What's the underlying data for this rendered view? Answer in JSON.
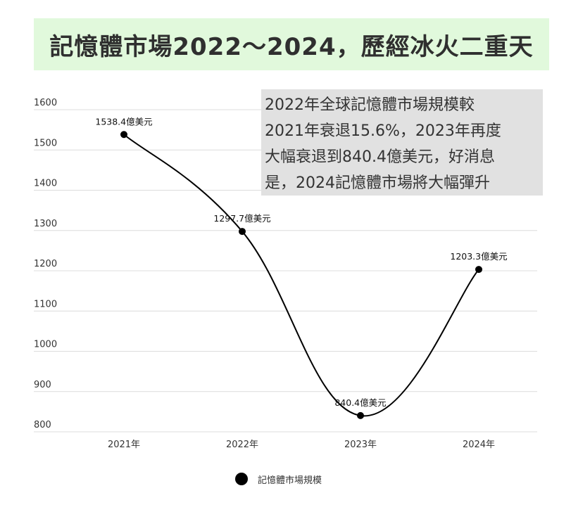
{
  "banner": {
    "title": "記憶體市場2022～2024，歷經冰火二重天"
  },
  "annotation": {
    "lines": [
      "2022年全球記憶體市場規模較",
      "2021年衰退15.6%，2023年再度",
      "大幅衰退到840.4億美元，好消息",
      "是，2024記憶體市場將大幅彈升"
    ]
  },
  "chart_data": {
    "type": "line",
    "categories": [
      "2021年",
      "2022年",
      "2023年",
      "2024年"
    ],
    "series": [
      {
        "name": "記憶體市場規模",
        "values": [
          1538.4,
          1297.7,
          840.4,
          1203.3
        ],
        "labels": [
          "1538.4億美元",
          "1297.7億美元",
          "840.4億美元",
          "1203.3億美元"
        ],
        "color": "#000000"
      }
    ],
    "yticks": [
      "1600",
      "1500",
      "1400",
      "1300",
      "1200",
      "1100",
      "1000",
      "900",
      "800"
    ],
    "ylim": [
      800,
      1600
    ],
    "grid": true,
    "smooth": true,
    "legend_position": "bottom"
  }
}
